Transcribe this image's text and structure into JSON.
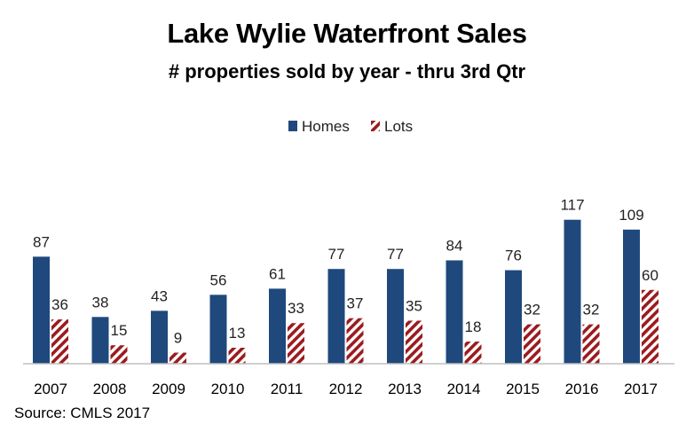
{
  "chart_data": {
    "type": "bar",
    "title": "Lake Wylie Waterfront Sales",
    "subtitle": "# properties sold by year - thru 3rd Qtr",
    "categories": [
      "2007",
      "2008",
      "2009",
      "2010",
      "2011",
      "2012",
      "2013",
      "2014",
      "2015",
      "2016",
      "2017"
    ],
    "series": [
      {
        "name": "Homes",
        "values": [
          87,
          38,
          43,
          56,
          61,
          77,
          77,
          84,
          76,
          117,
          109
        ],
        "color": "#1F497D",
        "fill": "solid"
      },
      {
        "name": "Lots",
        "values": [
          36,
          15,
          9,
          13,
          33,
          37,
          35,
          18,
          32,
          32,
          60
        ],
        "color": "#9B1B1E",
        "fill": "diagonal-stripes"
      }
    ],
    "xlabel": "",
    "ylabel": "",
    "ylim": [
      0,
      130
    ],
    "grid": false,
    "legend_position": "top-center",
    "data_labels": true,
    "source": "Source: CMLS  2017"
  }
}
